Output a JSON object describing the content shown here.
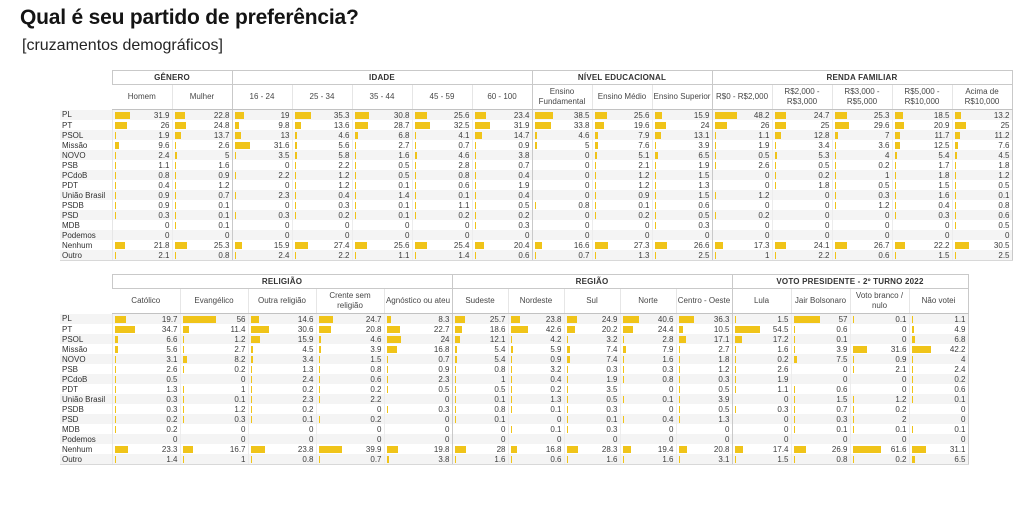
{
  "page": {
    "title": "Qual é seu partido de preferência?",
    "subtitle": "[cruzamentos demográficos]"
  },
  "colors": {
    "bar": "#F0C419",
    "stripe": "#F4F4F4",
    "header_border": "#C9C9C9"
  },
  "bar_scale_max": 65,
  "chart_data": [
    {
      "type": "table",
      "name": "crosstab-demographics-top",
      "groups": [
        {
          "label": "GÊNERO",
          "columns": [
            "Homem",
            "Mulher"
          ]
        },
        {
          "label": "IDADE",
          "columns": [
            "16 - 24",
            "25 - 34",
            "35 - 44",
            "45 - 59",
            "60 - 100"
          ]
        },
        {
          "label": "NÍVEL EDUCACIONAL",
          "columns": [
            "Ensino Fundamental",
            "Ensino Médio",
            "Ensino Superior"
          ]
        },
        {
          "label": "RENDA FAMILIAR",
          "columns": [
            "R$0 - R$2,000",
            "R$2,000 - R$3,000",
            "R$3,000 - R$5,000",
            "R$5,000 - R$10,000",
            "Acima de R$10,000"
          ]
        }
      ],
      "rows": [
        {
          "label": "PL",
          "values": [
            31.9,
            22.8,
            19,
            35.3,
            30.8,
            25.6,
            23.4,
            38.5,
            25.6,
            15.9,
            48.2,
            24.7,
            25.3,
            18.5,
            13.2
          ]
        },
        {
          "label": "PT",
          "values": [
            26,
            24.8,
            9.8,
            13.6,
            28.7,
            32.5,
            31.9,
            33.8,
            19.6,
            24,
            26,
            25,
            29.6,
            20.9,
            25
          ]
        },
        {
          "label": "PSOL",
          "values": [
            1.9,
            13.7,
            13,
            4.6,
            6.8,
            4.1,
            14.7,
            4.6,
            7.9,
            13.1,
            1.1,
            12.8,
            7,
            11.7,
            11.2
          ]
        },
        {
          "label": "Missão",
          "values": [
            9.6,
            2.6,
            31.6,
            5.6,
            2.7,
            0.7,
            0.9,
            5,
            7.6,
            3.9,
            1.9,
            3.4,
            3.6,
            12.5,
            7.6
          ]
        },
        {
          "label": "NOVO",
          "values": [
            2.4,
            5,
            3.5,
            5.8,
            1.6,
            4.6,
            3.8,
            0,
            5.1,
            6.5,
            0.5,
            5.3,
            4,
            5.4,
            4.5
          ]
        },
        {
          "label": "PSB",
          "values": [
            1.1,
            1.6,
            0,
            2.2,
            0.5,
            2.8,
            0.7,
            0,
            2.1,
            1.9,
            2.6,
            0.5,
            0.2,
            1.7,
            1.8
          ]
        },
        {
          "label": "PCdoB",
          "values": [
            0.8,
            0.9,
            2.2,
            1.2,
            0.5,
            0.8,
            0.4,
            0,
            1.2,
            1.5,
            0,
            0.2,
            1,
            1.8,
            1.2
          ]
        },
        {
          "label": "PDT",
          "values": [
            0.4,
            1.2,
            0,
            1.2,
            0.1,
            0.6,
            1.9,
            0,
            1.2,
            1.3,
            0,
            1.8,
            0.5,
            1.5,
            0.5
          ]
        },
        {
          "label": "União Brasil",
          "values": [
            0.9,
            0.7,
            2.3,
            0.4,
            1.4,
            0.1,
            0.4,
            0,
            0.9,
            1.5,
            1.2,
            0,
            0.3,
            1.6,
            0.1
          ]
        },
        {
          "label": "PSDB",
          "values": [
            0.9,
            0.1,
            0,
            0.3,
            0.1,
            1.1,
            0.5,
            0.8,
            0.1,
            0.6,
            0,
            0,
            1.2,
            0.4,
            0.8
          ]
        },
        {
          "label": "PSD",
          "values": [
            0.3,
            0.1,
            0.3,
            0.2,
            0.1,
            0.2,
            0.2,
            0,
            0.2,
            0.5,
            0.2,
            0,
            0,
            0.3,
            0.6
          ]
        },
        {
          "label": "MDB",
          "values": [
            0,
            0.1,
            0,
            0,
            0,
            0,
            0.3,
            0,
            0,
            0.3,
            0,
            0,
            0,
            0,
            0.5
          ]
        },
        {
          "label": "Podemos",
          "values": [
            0,
            0,
            0,
            0,
            0,
            0,
            0,
            0,
            0,
            0,
            0,
            0,
            0,
            0,
            0
          ]
        },
        {
          "label": "Nenhum",
          "values": [
            21.8,
            25.3,
            15.9,
            27.4,
            25.6,
            25.4,
            20.4,
            16.6,
            27.3,
            26.6,
            17.3,
            24.1,
            26.7,
            22.2,
            30.5
          ]
        },
        {
          "label": "Outro",
          "values": [
            2.1,
            0.8,
            2.4,
            2.2,
            1.1,
            1.4,
            0.6,
            0.7,
            1.3,
            2.5,
            1,
            2.2,
            0.6,
            1.5,
            2.5
          ]
        }
      ]
    },
    {
      "type": "table",
      "name": "crosstab-demographics-bottom",
      "groups": [
        {
          "label": "RELIGIÃO",
          "columns": [
            "Católico",
            "Evangélico",
            "Outra religião",
            "Crente sem religião",
            "Agnóstico ou ateu"
          ]
        },
        {
          "label": "REGIÃO",
          "columns": [
            "Sudeste",
            "Nordeste",
            "Sul",
            "Norte",
            "Centro - Oeste"
          ]
        },
        {
          "label": "VOTO PRESIDENTE - 2º TURNO 2022",
          "columns": [
            "Lula",
            "Jair Bolsonaro",
            "Voto branco / nulo",
            "Não votei"
          ]
        }
      ],
      "rows": [
        {
          "label": "PL",
          "values": [
            19.7,
            56,
            14.6,
            24.7,
            8.3,
            25.7,
            23.8,
            24.9,
            40.6,
            36.3,
            1.5,
            57,
            0.1,
            1.1
          ]
        },
        {
          "label": "PT",
          "values": [
            34.7,
            11.4,
            30.6,
            20.8,
            22.7,
            18.6,
            42.6,
            20.2,
            24.4,
            10.5,
            54.5,
            0.6,
            0,
            4.9
          ]
        },
        {
          "label": "PSOL",
          "values": [
            6.6,
            1.2,
            15.9,
            4.6,
            24,
            12.1,
            4.2,
            3.2,
            2.8,
            17.1,
            17.2,
            0.1,
            0,
            6.8
          ]
        },
        {
          "label": "Missão",
          "values": [
            5.6,
            2.7,
            4.5,
            3.9,
            16.8,
            5.4,
            5.9,
            7.4,
            7.9,
            2.7,
            1.6,
            3.9,
            31.6,
            42.2
          ]
        },
        {
          "label": "NOVO",
          "values": [
            3.1,
            8.2,
            3.4,
            1.5,
            0.7,
            5.4,
            0.9,
            7.4,
            1.6,
            1.8,
            0.2,
            7.5,
            0.9,
            4
          ]
        },
        {
          "label": "PSB",
          "values": [
            2.6,
            0.2,
            1.3,
            0.8,
            0.9,
            0.8,
            3.2,
            0.3,
            0.3,
            1.2,
            2.6,
            0,
            2.1,
            2.4
          ]
        },
        {
          "label": "PCdoB",
          "values": [
            0.5,
            0,
            2.4,
            0.6,
            2.3,
            1,
            0.4,
            1.9,
            0.8,
            0.3,
            1.9,
            0,
            0,
            0.2
          ]
        },
        {
          "label": "PDT",
          "values": [
            1.3,
            1,
            0.2,
            0.2,
            0.5,
            0.5,
            0.2,
            3.5,
            0,
            0.5,
            1.1,
            0.6,
            0,
            0.6
          ]
        },
        {
          "label": "União Brasil",
          "values": [
            0.3,
            0.1,
            2.3,
            2.2,
            0,
            0.1,
            1.3,
            0.5,
            0.1,
            3.9,
            0,
            1.5,
            1.2,
            0.1
          ]
        },
        {
          "label": "PSDB",
          "values": [
            0.3,
            1.2,
            0.2,
            0,
            0.3,
            0.8,
            0.1,
            0.3,
            0,
            0.5,
            0.3,
            0.7,
            0.2,
            0
          ]
        },
        {
          "label": "PSD",
          "values": [
            0.2,
            0.3,
            0.1,
            0.2,
            0,
            0.1,
            0,
            0.1,
            0.4,
            1.3,
            0,
            0.3,
            2,
            0
          ]
        },
        {
          "label": "MDB",
          "values": [
            0.2,
            0,
            0,
            0,
            0,
            0,
            0.1,
            0.3,
            0,
            0,
            0,
            0.1,
            0.1,
            0.1
          ]
        },
        {
          "label": "Podemos",
          "values": [
            0,
            0,
            0,
            0,
            0,
            0,
            0,
            0,
            0,
            0,
            0,
            0,
            0,
            0
          ]
        },
        {
          "label": "Nenhum",
          "values": [
            23.3,
            16.7,
            23.8,
            39.9,
            19.8,
            28,
            16.8,
            28.3,
            19.4,
            20.8,
            17.4,
            26.9,
            61.6,
            31.1
          ]
        },
        {
          "label": "Outro",
          "values": [
            1.4,
            1,
            0.8,
            0.7,
            3.8,
            1.6,
            0.6,
            1.6,
            1.6,
            3.1,
            1.5,
            0.8,
            0.2,
            6.5
          ]
        }
      ]
    }
  ]
}
